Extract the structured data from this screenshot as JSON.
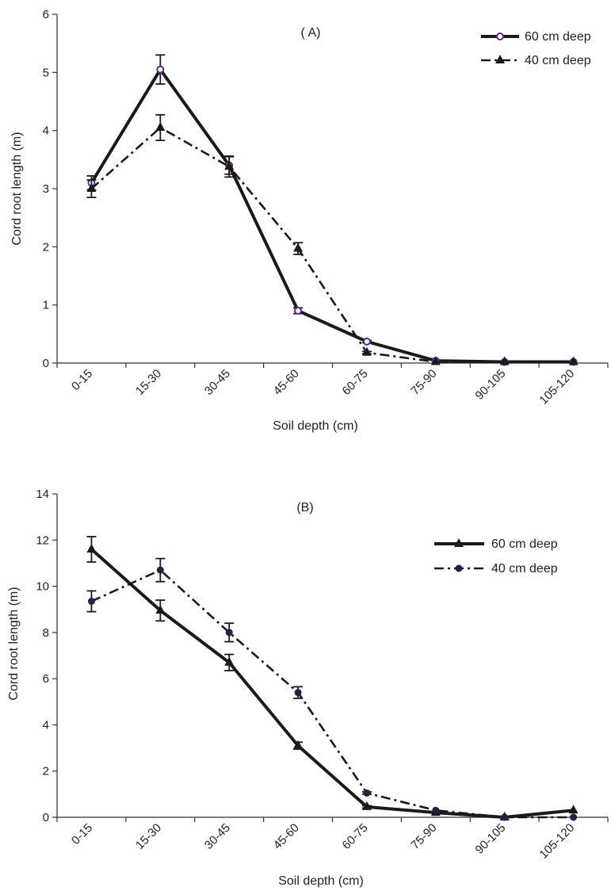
{
  "chart_data": [
    {
      "type": "line",
      "title": "( A)",
      "xlabel": "Soil depth (cm)",
      "ylabel": "Cord root length (m)",
      "categories": [
        "0-15",
        "15-30",
        "30-45",
        "45-60",
        "60-75",
        "75-90",
        "90-105",
        "105-120"
      ],
      "ylim": [
        0,
        6
      ],
      "yticks": [
        0,
        1,
        2,
        3,
        4,
        5,
        6
      ],
      "legend_position": "top-right",
      "series": [
        {
          "name": "60 cm deep",
          "values": [
            3.1,
            5.05,
            3.4,
            0.9,
            0.37,
            0.04,
            0.02,
            0.02
          ],
          "errors": [
            0.12,
            0.25,
            0.15,
            0.05,
            0.02,
            0.0,
            0.0,
            0.0
          ],
          "marker": "open-circle",
          "line_style": "solid",
          "color": "#1a1a1a",
          "marker_stroke": "#5b2a86"
        },
        {
          "name": "40 cm deep",
          "values": [
            3.0,
            4.05,
            3.38,
            1.97,
            0.18,
            0.02,
            0.02,
            0.02
          ],
          "errors": [
            0.15,
            0.22,
            0.18,
            0.1,
            0.02,
            0.0,
            0.0,
            0.0
          ],
          "marker": "triangle",
          "line_style": "dash-dot",
          "color": "#1a1a1a"
        }
      ]
    },
    {
      "type": "line",
      "title": "(B)",
      "xlabel": "Soil depth (cm)",
      "ylabel": "Cord root length (m)",
      "categories": [
        "0-15",
        "15-30",
        "30-45",
        "45-60",
        "60-75",
        "75-90",
        "90-105",
        "105-120"
      ],
      "ylim": [
        0,
        14
      ],
      "yticks": [
        0,
        2,
        4,
        6,
        8,
        10,
        12,
        14
      ],
      "legend_position": "top-right",
      "series": [
        {
          "name": "60 cm deep",
          "values": [
            11.6,
            8.95,
            6.7,
            3.1,
            0.45,
            0.2,
            0.0,
            0.3
          ],
          "errors": [
            0.55,
            0.45,
            0.35,
            0.15,
            0.05,
            0.0,
            0.0,
            0.0
          ],
          "marker": "triangle",
          "line_style": "solid",
          "color": "#1a1a1a"
        },
        {
          "name": "40 cm deep",
          "values": [
            9.35,
            10.7,
            8.0,
            5.4,
            1.05,
            0.3,
            0.0,
            0.0
          ],
          "errors": [
            0.45,
            0.5,
            0.4,
            0.25,
            0.05,
            0.0,
            0.0,
            0.0
          ],
          "marker": "filled-circle",
          "line_style": "dash-dot",
          "color": "#1a1a1a",
          "marker_fill": "#2a1f3d"
        }
      ]
    }
  ]
}
